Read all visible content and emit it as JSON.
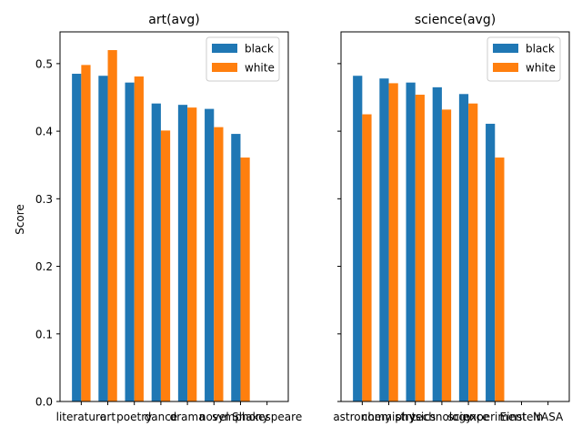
{
  "chart_data": [
    {
      "type": "bar",
      "title": "art(avg)",
      "ylabel": "Score",
      "xlabel": "",
      "categories": [
        "literature",
        "art",
        "poetry",
        "dance",
        "drama",
        "novel",
        "symphony",
        "Shakespeare"
      ],
      "series": [
        {
          "name": "black",
          "color": "#1f77b4",
          "values": [
            0.485,
            0.482,
            0.472,
            0.441,
            0.439,
            0.433,
            0.396,
            null
          ]
        },
        {
          "name": "white",
          "color": "#ff7f0e",
          "values": [
            0.498,
            0.52,
            0.481,
            0.401,
            0.435,
            0.406,
            0.361,
            null
          ]
        }
      ],
      "ylim": [
        0,
        0.547
      ],
      "yticks": [
        0.0,
        0.1,
        0.2,
        0.3,
        0.4,
        0.5
      ],
      "ytick_labels": [
        "0.0",
        "0.1",
        "0.2",
        "0.3",
        "0.4",
        "0.5"
      ],
      "legend": "top-right",
      "grid": false
    },
    {
      "type": "bar",
      "title": "science(avg)",
      "ylabel": "",
      "xlabel": "",
      "categories": [
        "astronomy",
        "chemistry",
        "physics",
        "technology",
        "science",
        "experiment",
        "Einstein",
        "NASA"
      ],
      "series": [
        {
          "name": "black",
          "color": "#1f77b4",
          "values": [
            0.482,
            0.478,
            0.472,
            0.465,
            0.455,
            0.411,
            null,
            null
          ]
        },
        {
          "name": "white",
          "color": "#ff7f0e",
          "values": [
            0.425,
            0.471,
            0.454,
            0.432,
            0.441,
            0.361,
            null,
            null
          ]
        }
      ],
      "ylim": [
        0,
        0.547
      ],
      "yticks": [
        0.0,
        0.1,
        0.2,
        0.3,
        0.4,
        0.5
      ],
      "ytick_labels": [
        "",
        "",
        "",
        "",
        "",
        ""
      ],
      "legend": "top-right",
      "grid": false
    }
  ]
}
